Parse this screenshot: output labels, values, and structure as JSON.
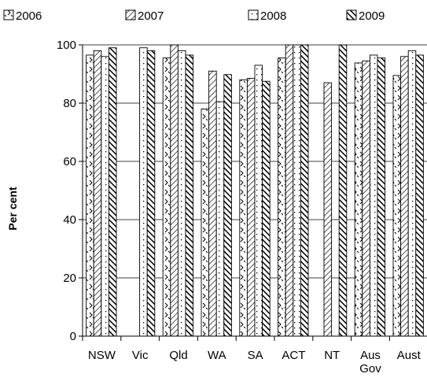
{
  "chart_data": {
    "type": "bar",
    "categories": [
      "NSW",
      "Vic",
      "Qld",
      "WA",
      "SA",
      "ACT",
      "NT",
      "Aus Gov",
      "Aust"
    ],
    "series": [
      {
        "name": "2006",
        "pattern": "chevron",
        "values": [
          96.5,
          null,
          95.5,
          78,
          88,
          95.5,
          null,
          93.8,
          89.5
        ]
      },
      {
        "name": "2007",
        "pattern": "diagonal",
        "values": [
          98,
          null,
          100,
          91,
          88.5,
          100,
          87,
          94.5,
          96
        ]
      },
      {
        "name": "2008",
        "pattern": "dots",
        "values": [
          96,
          99,
          98,
          80.5,
          93,
          100,
          null,
          96.5,
          98
        ]
      },
      {
        "name": "2009",
        "pattern": "dense-diagonal",
        "values": [
          99,
          98,
          96.5,
          89.8,
          87.5,
          100,
          100,
          95.5,
          96.5
        ]
      }
    ],
    "ylabel": "Per cent",
    "xlabel": "",
    "ylim": [
      0,
      100
    ],
    "yticks": [
      0,
      20,
      40,
      60,
      80,
      100
    ],
    "grid": true,
    "legend_position": "top"
  }
}
